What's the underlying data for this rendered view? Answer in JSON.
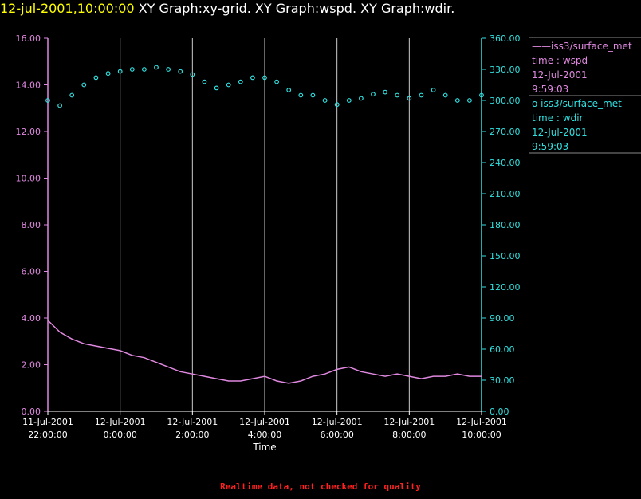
{
  "header": {
    "timestamp": "12-jul-2001,10:00:00",
    "graph_titles": "XY Graph:xy-grid.  XY Graph:wspd.  XY Graph:wdir."
  },
  "colors": {
    "left_axis": "#e088e0",
    "right_axis": "#30e0e0",
    "grid": "#cccccc",
    "background": "#000000"
  },
  "legend": [
    {
      "line1": "——iss3/surface_met",
      "line2": "time : wspd",
      "line3": "12-Jul-2001",
      "line4": "9:59:03",
      "color": "#e088e0"
    },
    {
      "line1": "o  iss3/surface_met",
      "line2": "time : wdir",
      "line3": "12-Jul-2001",
      "line4": "9:59:03",
      "color": "#30e0e0"
    }
  ],
  "footer": "Realtime data, not checked for quality",
  "chart_data": {
    "type": "line",
    "xlabel": "Time",
    "xlim": [
      "11-Jul-2001 22:00:00",
      "12-Jul-2001 10:00:00"
    ],
    "x_ticks": [
      {
        "date": "11-Jul-2001",
        "time": "22:00:00"
      },
      {
        "date": "12-Jul-2001",
        "time": "0:00:00"
      },
      {
        "date": "12-Jul-2001",
        "time": "2:00:00"
      },
      {
        "date": "12-Jul-2001",
        "time": "4:00:00"
      },
      {
        "date": "12-Jul-2001",
        "time": "6:00:00"
      },
      {
        "date": "12-Jul-2001",
        "time": "8:00:00"
      },
      {
        "date": "12-Jul-2001",
        "time": "10:00:00"
      }
    ],
    "y_left": {
      "ylim": [
        0,
        16
      ],
      "ticks": [
        "0.00",
        "2.00",
        "4.00",
        "6.00",
        "8.00",
        "10.00",
        "12.00",
        "14.00",
        "16.00"
      ]
    },
    "y_right": {
      "ylim": [
        0,
        360
      ],
      "ticks": [
        "0.00",
        "30.00",
        "60.00",
        "90.00",
        "120.00",
        "150.00",
        "180.00",
        "210.00",
        "240.00",
        "270.00",
        "300.00",
        "330.00",
        "360.00"
      ]
    },
    "grid": "vertical",
    "series": [
      {
        "name": "iss3/surface_met time : wspd",
        "style": "line",
        "axis": "left",
        "x": [
          "22:00",
          "22:20",
          "22:40",
          "23:00",
          "23:20",
          "23:40",
          "0:00",
          "0:20",
          "0:40",
          "1:00",
          "1:20",
          "1:40",
          "2:00",
          "2:20",
          "2:40",
          "3:00",
          "3:20",
          "3:40",
          "4:00",
          "4:20",
          "4:40",
          "5:00",
          "5:20",
          "5:40",
          "6:00",
          "6:20",
          "6:40",
          "7:00",
          "7:20",
          "7:40",
          "8:00",
          "8:20",
          "8:40",
          "9:00",
          "9:20",
          "9:40",
          "10:00"
        ],
        "y": [
          3.9,
          3.4,
          3.1,
          2.9,
          2.8,
          2.7,
          2.6,
          2.4,
          2.3,
          2.1,
          1.9,
          1.7,
          1.6,
          1.5,
          1.4,
          1.3,
          1.3,
          1.4,
          1.5,
          1.3,
          1.2,
          1.3,
          1.5,
          1.6,
          1.8,
          1.9,
          1.7,
          1.6,
          1.5,
          1.6,
          1.5,
          1.4,
          1.5,
          1.5,
          1.6,
          1.5,
          1.5
        ]
      },
      {
        "name": "iss3/surface_met time : wdir",
        "style": "scatter",
        "axis": "right",
        "x": [
          "22:00",
          "22:20",
          "22:40",
          "23:00",
          "23:20",
          "23:40",
          "0:00",
          "0:20",
          "0:40",
          "1:00",
          "1:20",
          "1:40",
          "2:00",
          "2:20",
          "2:40",
          "3:00",
          "3:20",
          "3:40",
          "4:00",
          "4:20",
          "4:40",
          "5:00",
          "5:20",
          "5:40",
          "6:00",
          "6:20",
          "6:40",
          "7:00",
          "7:20",
          "7:40",
          "8:00",
          "8:20",
          "8:40",
          "9:00",
          "9:20",
          "9:40",
          "10:00"
        ],
        "y": [
          300,
          295,
          305,
          315,
          322,
          326,
          328,
          330,
          330,
          332,
          330,
          328,
          325,
          318,
          312,
          315,
          318,
          322,
          322,
          318,
          310,
          305,
          305,
          300,
          296,
          300,
          302,
          306,
          308,
          305,
          302,
          305,
          310,
          305,
          300,
          300,
          305
        ]
      }
    ]
  }
}
